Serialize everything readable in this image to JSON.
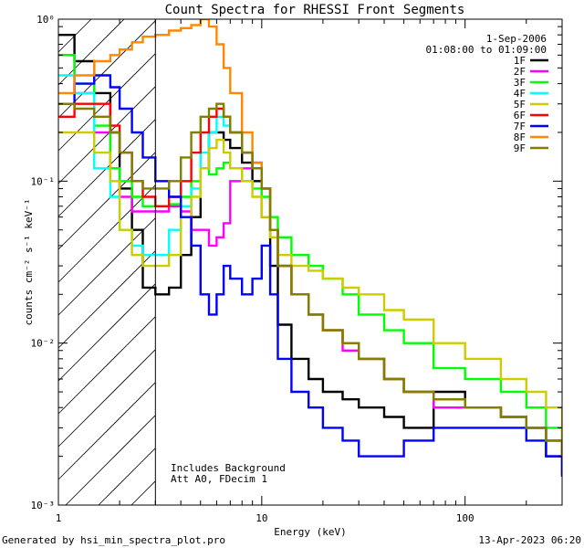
{
  "chart_data": {
    "type": "line",
    "title": "Count Spectra for RHESSI Front Segments",
    "xlabel": "Energy (keV)",
    "ylabel": "counts cm⁻² s⁻¹ keV⁻¹",
    "xscale": "log",
    "yscale": "log",
    "xlim": [
      1,
      300
    ],
    "ylim": [
      0.001,
      1
    ],
    "x_ticks": [
      {
        "value": 1,
        "label": "1"
      },
      {
        "value": 10,
        "label": "10"
      },
      {
        "value": 100,
        "label": "100"
      }
    ],
    "y_ticks": [
      {
        "value": 1,
        "label": "10⁰"
      },
      {
        "value": 0.1,
        "label": "10⁻¹"
      },
      {
        "value": 0.01,
        "label": "10⁻²"
      },
      {
        "value": 0.001,
        "label": "10⁻³"
      }
    ],
    "shaded_region": {
      "x_min": 1,
      "x_max": 3,
      "style": "diagonal hatch"
    },
    "date": "1-Sep-2006",
    "time_range": "01:08:00 to 01:09:00",
    "annotations": [
      "Includes Background",
      "Att A0, FDecim 1"
    ],
    "series": [
      {
        "name": "1F",
        "color": "#000000",
        "x": [
          1.0,
          1.2,
          1.5,
          1.8,
          2.0,
          2.3,
          2.6,
          3.0,
          3.5,
          4.0,
          4.5,
          5.0,
          5.5,
          6.0,
          6.5,
          7.0,
          8.0,
          9.0,
          10.0,
          11.0,
          12.0,
          14.0,
          17.0,
          20.0,
          25.0,
          30.0,
          40.0,
          50.0,
          70.0,
          100.0,
          150.0,
          200.0,
          250.0,
          300.0
        ],
        "y": [
          0.8,
          0.55,
          0.35,
          0.2,
          0.09,
          0.05,
          0.022,
          0.02,
          0.022,
          0.035,
          0.06,
          0.12,
          0.2,
          0.2,
          0.18,
          0.16,
          0.13,
          0.1,
          0.06,
          0.03,
          0.013,
          0.008,
          0.006,
          0.005,
          0.0045,
          0.004,
          0.0035,
          0.003,
          0.005,
          0.004,
          0.0035,
          0.003,
          0.002,
          0.0015
        ]
      },
      {
        "name": "2F",
        "color": "#ff00ff",
        "x": [
          1.0,
          1.2,
          1.5,
          1.8,
          2.0,
          2.3,
          2.6,
          3.0,
          3.5,
          4.0,
          4.5,
          5.0,
          5.5,
          6.0,
          6.5,
          7.0,
          8.0,
          9.0,
          10.0,
          11.0,
          12.0,
          14.0,
          17.0,
          20.0,
          25.0,
          30.0,
          40.0,
          50.0,
          70.0,
          100.0,
          150.0,
          200.0,
          250.0,
          300.0
        ],
        "y": [
          0.6,
          0.35,
          0.2,
          0.12,
          0.08,
          0.065,
          0.065,
          0.065,
          0.07,
          0.065,
          0.05,
          0.05,
          0.04,
          0.045,
          0.055,
          0.1,
          0.12,
          0.13,
          0.09,
          0.05,
          0.03,
          0.02,
          0.015,
          0.012,
          0.009,
          0.008,
          0.006,
          0.005,
          0.004,
          0.004,
          0.0035,
          0.003,
          0.0025,
          0.002
        ]
      },
      {
        "name": "3F",
        "color": "#00ff00",
        "x": [
          1.0,
          1.2,
          1.5,
          1.8,
          2.0,
          2.3,
          2.6,
          3.0,
          3.5,
          4.0,
          4.5,
          5.0,
          5.5,
          6.0,
          6.5,
          7.0,
          8.0,
          9.0,
          10.0,
          11.0,
          12.0,
          14.0,
          17.0,
          20.0,
          25.0,
          30.0,
          40.0,
          50.0,
          70.0,
          100.0,
          150.0,
          200.0,
          250.0,
          300.0
        ],
        "y": [
          0.6,
          0.4,
          0.22,
          0.12,
          0.1,
          0.08,
          0.07,
          0.07,
          0.072,
          0.08,
          0.1,
          0.12,
          0.11,
          0.12,
          0.13,
          0.12,
          0.1,
          0.09,
          0.08,
          0.06,
          0.045,
          0.035,
          0.03,
          0.025,
          0.02,
          0.015,
          0.012,
          0.01,
          0.007,
          0.006,
          0.005,
          0.004,
          0.003,
          0.002
        ]
      },
      {
        "name": "4F",
        "color": "#00ffff",
        "x": [
          1.0,
          1.2,
          1.5,
          1.8,
          2.0,
          2.3,
          2.6,
          3.0,
          3.5,
          4.0,
          4.5,
          5.0,
          5.5,
          6.0,
          6.5,
          7.0,
          8.0,
          9.0,
          10.0,
          11.0,
          12.0,
          14.0,
          17.0,
          20.0,
          25.0,
          30.0,
          40.0,
          50.0,
          70.0,
          100.0,
          150.0,
          200.0,
          250.0,
          300.0
        ],
        "y": [
          0.45,
          0.35,
          0.12,
          0.08,
          0.05,
          0.04,
          0.035,
          0.035,
          0.05,
          0.07,
          0.09,
          0.15,
          0.2,
          0.25,
          0.22,
          0.2,
          0.15,
          0.12,
          0.09,
          0.05,
          0.03,
          0.02,
          0.015,
          0.012,
          0.01,
          0.008,
          0.006,
          0.005,
          0.0045,
          0.004,
          0.0035,
          0.003,
          0.0025,
          0.002
        ]
      },
      {
        "name": "5F",
        "color": "#cccc00",
        "x": [
          1.0,
          1.2,
          1.5,
          1.8,
          2.0,
          2.3,
          2.6,
          3.0,
          3.5,
          4.0,
          4.5,
          5.0,
          5.5,
          6.0,
          6.5,
          7.0,
          8.0,
          9.0,
          10.0,
          11.0,
          12.0,
          14.0,
          17.0,
          20.0,
          25.0,
          30.0,
          40.0,
          50.0,
          70.0,
          100.0,
          150.0,
          200.0,
          250.0,
          300.0
        ],
        "y": [
          0.2,
          0.2,
          0.15,
          0.1,
          0.05,
          0.035,
          0.03,
          0.03,
          0.035,
          0.06,
          0.08,
          0.12,
          0.16,
          0.18,
          0.15,
          0.12,
          0.1,
          0.08,
          0.06,
          0.045,
          0.035,
          0.03,
          0.028,
          0.025,
          0.022,
          0.02,
          0.016,
          0.014,
          0.01,
          0.008,
          0.006,
          0.005,
          0.004,
          0.0025
        ]
      },
      {
        "name": "6F",
        "color": "#ff0000",
        "x": [
          1.0,
          1.2,
          1.5,
          1.8,
          2.0,
          2.3,
          2.6,
          3.0,
          3.5,
          4.0,
          4.5,
          5.0,
          5.5,
          6.0,
          6.5,
          7.0,
          8.0,
          9.0,
          10.0,
          11.0,
          12.0,
          14.0,
          17.0,
          20.0,
          25.0,
          30.0,
          40.0,
          50.0,
          70.0,
          100.0,
          150.0,
          200.0,
          250.0,
          300.0
        ],
        "y": [
          0.25,
          0.3,
          0.3,
          0.22,
          0.15,
          0.1,
          0.08,
          0.07,
          0.08,
          0.1,
          0.15,
          0.2,
          0.25,
          0.28,
          0.25,
          0.2,
          0.15,
          0.12,
          0.09,
          0.05,
          0.03,
          0.02,
          0.015,
          0.012,
          0.01,
          0.008,
          0.006,
          0.005,
          0.0045,
          0.004,
          0.0035,
          0.003,
          0.0025,
          0.002
        ]
      },
      {
        "name": "7F",
        "color": "#0000ff",
        "x": [
          1.0,
          1.2,
          1.5,
          1.8,
          2.0,
          2.3,
          2.6,
          3.0,
          3.5,
          4.0,
          4.5,
          5.0,
          5.5,
          6.0,
          6.5,
          7.0,
          8.0,
          9.0,
          10.0,
          11.0,
          12.0,
          14.0,
          17.0,
          20.0,
          25.0,
          30.0,
          40.0,
          50.0,
          70.0,
          100.0,
          150.0,
          200.0,
          250.0,
          300.0
        ],
        "y": [
          0.3,
          0.4,
          0.45,
          0.38,
          0.28,
          0.2,
          0.14,
          0.1,
          0.08,
          0.06,
          0.04,
          0.02,
          0.015,
          0.02,
          0.03,
          0.025,
          0.02,
          0.025,
          0.04,
          0.02,
          0.008,
          0.005,
          0.004,
          0.003,
          0.0025,
          0.002,
          0.002,
          0.0025,
          0.003,
          0.003,
          0.003,
          0.0025,
          0.002,
          0.0015
        ]
      },
      {
        "name": "8F",
        "color": "#ff8800",
        "x": [
          1.0,
          1.2,
          1.5,
          1.8,
          2.0,
          2.3,
          2.6,
          3.0,
          3.5,
          4.0,
          4.5,
          5.0,
          5.5,
          6.0,
          6.5,
          7.0,
          8.0,
          9.0,
          10.0,
          11.0,
          12.0,
          14.0,
          17.0,
          20.0,
          25.0,
          30.0,
          40.0,
          50.0,
          70.0,
          100.0,
          150.0,
          200.0,
          250.0,
          300.0
        ],
        "y": [
          0.35,
          0.45,
          0.55,
          0.6,
          0.65,
          0.72,
          0.78,
          0.8,
          0.85,
          0.88,
          0.92,
          1.0,
          0.9,
          0.7,
          0.5,
          0.35,
          0.2,
          0.13,
          0.09,
          0.05,
          0.03,
          0.02,
          0.015,
          0.012,
          0.01,
          0.008,
          0.006,
          0.005,
          0.0045,
          0.004,
          0.0035,
          0.003,
          0.0025,
          0.002
        ]
      },
      {
        "name": "9F",
        "color": "#808000",
        "x": [
          1.0,
          1.2,
          1.5,
          1.8,
          2.0,
          2.3,
          2.6,
          3.0,
          3.5,
          4.0,
          4.5,
          5.0,
          5.5,
          6.0,
          6.5,
          7.0,
          8.0,
          9.0,
          10.0,
          11.0,
          12.0,
          14.0,
          17.0,
          20.0,
          25.0,
          30.0,
          40.0,
          50.0,
          70.0,
          100.0,
          150.0,
          200.0,
          250.0,
          300.0
        ],
        "y": [
          0.3,
          0.28,
          0.25,
          0.2,
          0.15,
          0.1,
          0.09,
          0.09,
          0.1,
          0.14,
          0.2,
          0.25,
          0.28,
          0.3,
          0.25,
          0.2,
          0.15,
          0.12,
          0.09,
          0.05,
          0.03,
          0.02,
          0.015,
          0.012,
          0.01,
          0.008,
          0.006,
          0.005,
          0.0045,
          0.004,
          0.0035,
          0.003,
          0.0025,
          0.002
        ]
      }
    ]
  },
  "footer": {
    "generated_by": "Generated by hsi_min_spectra_plot.pro",
    "timestamp": "13-Apr-2023 06:20"
  }
}
